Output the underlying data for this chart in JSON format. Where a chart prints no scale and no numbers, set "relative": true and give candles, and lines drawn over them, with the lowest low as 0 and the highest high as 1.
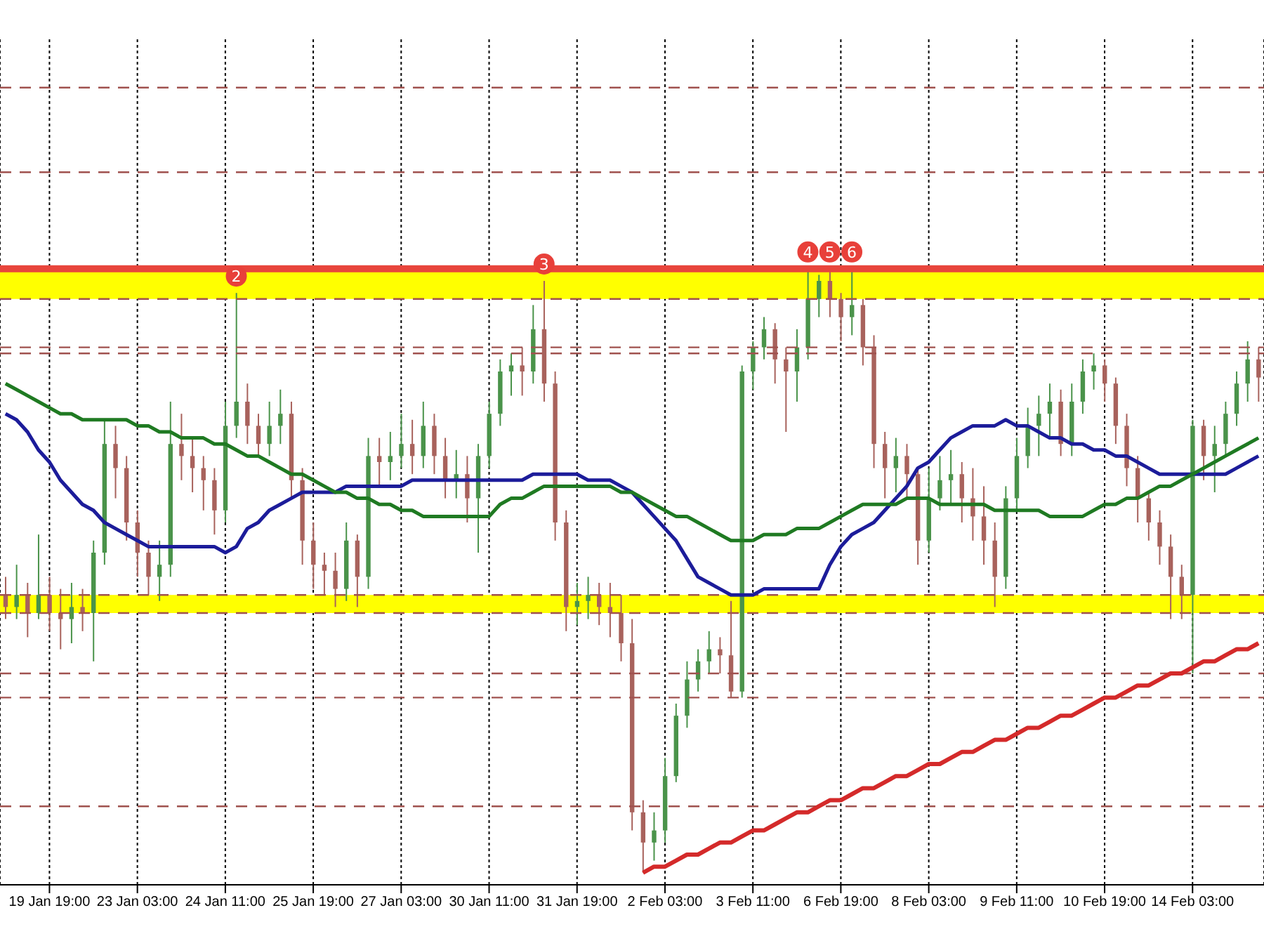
{
  "chart_data": {
    "type": "candlestick",
    "relative": true,
    "legend": false,
    "grid": "x",
    "categories": [
      null,
      null,
      null,
      null,
      "19 Jan 19:00",
      null,
      null,
      null,
      null,
      null,
      null,
      null,
      "23 Jan 03:00",
      null,
      null,
      null,
      null,
      null,
      null,
      null,
      "24 Jan 11:00",
      null,
      null,
      null,
      null,
      null,
      null,
      null,
      "25 Jan 19:00",
      null,
      null,
      null,
      null,
      null,
      null,
      null,
      "27 Jan 03:00",
      null,
      null,
      null,
      null,
      null,
      null,
      null,
      "30 Jan 11:00",
      null,
      null,
      null,
      null,
      null,
      null,
      null,
      "31 Jan 19:00",
      null,
      null,
      null,
      null,
      null,
      null,
      null,
      "2 Feb 03:00",
      null,
      null,
      null,
      null,
      null,
      null,
      null,
      "3 Feb 11:00",
      null,
      null,
      null,
      null,
      null,
      null,
      null,
      "6 Feb 19:00",
      null,
      null,
      null,
      null,
      null,
      null,
      null,
      "8 Feb 03:00",
      null,
      null,
      null,
      null,
      null,
      null,
      null,
      "9 Feb 11:00",
      null,
      null,
      null,
      null,
      null,
      null,
      null,
      "10 Feb 19:00",
      null,
      null,
      null,
      null,
      null,
      null,
      null,
      "14 Feb 03:00",
      null,
      null,
      null,
      null,
      null,
      null
    ],
    "ohlc": [
      [
        0.46,
        0.49,
        0.42,
        0.44
      ],
      [
        0.44,
        0.51,
        0.42,
        0.46
      ],
      [
        0.46,
        0.48,
        0.39,
        0.43
      ],
      [
        0.43,
        0.56,
        0.42,
        0.46
      ],
      [
        0.46,
        0.49,
        0.4,
        0.43
      ],
      [
        0.43,
        0.47,
        0.37,
        0.42
      ],
      [
        0.42,
        0.48,
        0.38,
        0.44
      ],
      [
        0.44,
        0.47,
        0.4,
        0.43
      ],
      [
        0.43,
        0.55,
        0.35,
        0.53
      ],
      [
        0.53,
        0.75,
        0.51,
        0.71
      ],
      [
        0.71,
        0.74,
        0.62,
        0.67
      ],
      [
        0.67,
        0.69,
        0.55,
        0.58
      ],
      [
        0.58,
        0.6,
        0.49,
        0.53
      ],
      [
        0.53,
        0.55,
        0.46,
        0.49
      ],
      [
        0.49,
        0.55,
        0.45,
        0.51
      ],
      [
        0.51,
        0.78,
        0.49,
        0.71
      ],
      [
        0.71,
        0.76,
        0.65,
        0.69
      ],
      [
        0.69,
        0.72,
        0.63,
        0.67
      ],
      [
        0.67,
        0.69,
        0.6,
        0.65
      ],
      [
        0.65,
        0.67,
        0.56,
        0.6
      ],
      [
        0.6,
        0.78,
        0.58,
        0.74
      ],
      [
        0.74,
        0.96,
        0.72,
        0.78
      ],
      [
        0.78,
        0.81,
        0.71,
        0.74
      ],
      [
        0.74,
        0.76,
        0.69,
        0.71
      ],
      [
        0.71,
        0.78,
        0.69,
        0.74
      ],
      [
        0.74,
        0.8,
        0.71,
        0.76
      ],
      [
        0.76,
        0.78,
        0.62,
        0.65
      ],
      [
        0.65,
        0.67,
        0.51,
        0.55
      ],
      [
        0.55,
        0.58,
        0.47,
        0.51
      ],
      [
        0.51,
        0.53,
        0.46,
        0.5
      ],
      [
        0.5,
        0.53,
        0.44,
        0.47
      ],
      [
        0.47,
        0.58,
        0.45,
        0.55
      ],
      [
        0.55,
        0.56,
        0.44,
        0.49
      ],
      [
        0.49,
        0.72,
        0.47,
        0.69
      ],
      [
        0.69,
        0.72,
        0.64,
        0.68
      ],
      [
        0.68,
        0.73,
        0.65,
        0.69
      ],
      [
        0.69,
        0.76,
        0.67,
        0.71
      ],
      [
        0.71,
        0.75,
        0.66,
        0.69
      ],
      [
        0.69,
        0.78,
        0.67,
        0.74
      ],
      [
        0.74,
        0.76,
        0.66,
        0.69
      ],
      [
        0.69,
        0.72,
        0.62,
        0.65
      ],
      [
        0.65,
        0.7,
        0.62,
        0.66
      ],
      [
        0.66,
        0.69,
        0.58,
        0.62
      ],
      [
        0.62,
        0.71,
        0.53,
        0.69
      ],
      [
        0.69,
        0.78,
        0.67,
        0.76
      ],
      [
        0.76,
        0.85,
        0.74,
        0.83
      ],
      [
        0.83,
        0.86,
        0.79,
        0.84
      ],
      [
        0.84,
        0.87,
        0.79,
        0.83
      ],
      [
        0.83,
        0.94,
        0.81,
        0.9
      ],
      [
        0.9,
        0.98,
        0.78,
        0.81
      ],
      [
        0.81,
        0.83,
        0.55,
        0.58
      ],
      [
        0.58,
        0.6,
        0.4,
        0.44
      ],
      [
        0.44,
        0.48,
        0.41,
        0.45
      ],
      [
        0.45,
        0.49,
        0.42,
        0.46
      ],
      [
        0.46,
        0.48,
        0.41,
        0.44
      ],
      [
        0.44,
        0.48,
        0.39,
        0.43
      ],
      [
        0.43,
        0.46,
        0.35,
        0.38
      ],
      [
        0.38,
        0.42,
        0.07,
        0.1
      ],
      [
        0.1,
        0.12,
        0,
        0.05
      ],
      [
        0.05,
        0.1,
        0.02,
        0.07
      ],
      [
        0.07,
        0.19,
        0.05,
        0.16
      ],
      [
        0.16,
        0.28,
        0.15,
        0.26
      ],
      [
        0.26,
        0.35,
        0.24,
        0.32
      ],
      [
        0.32,
        0.37,
        0.3,
        0.35
      ],
      [
        0.35,
        0.4,
        0.33,
        0.37
      ],
      [
        0.37,
        0.39,
        0.33,
        0.36
      ],
      [
        0.36,
        0.45,
        0.29,
        0.3
      ],
      [
        0.3,
        0.84,
        0.29,
        0.83
      ],
      [
        0.83,
        0.88,
        0.8,
        0.87
      ],
      [
        0.87,
        0.92,
        0.85,
        0.9
      ],
      [
        0.9,
        0.91,
        0.81,
        0.85
      ],
      [
        0.85,
        0.87,
        0.73,
        0.83
      ],
      [
        0.83,
        0.9,
        0.78,
        0.87
      ],
      [
        0.87,
        1,
        0.85,
        0.95
      ],
      [
        0.95,
        0.99,
        0.92,
        0.98
      ],
      [
        0.98,
        1,
        0.92,
        0.95
      ],
      [
        0.95,
        0.96,
        0.88,
        0.92
      ],
      [
        0.92,
        1,
        0.89,
        0.94
      ],
      [
        0.94,
        0.95,
        0.84,
        0.87
      ],
      [
        0.87,
        0.89,
        0.67,
        0.71
      ],
      [
        0.71,
        0.73,
        0.62,
        0.67
      ],
      [
        0.67,
        0.72,
        0.63,
        0.69
      ],
      [
        0.69,
        0.71,
        0.62,
        0.66
      ],
      [
        0.66,
        0.67,
        0.51,
        0.55
      ],
      [
        0.55,
        0.67,
        0.53,
        0.62
      ],
      [
        0.62,
        0.69,
        0.6,
        0.65
      ],
      [
        0.65,
        0.7,
        0.61,
        0.66
      ],
      [
        0.66,
        0.68,
        0.58,
        0.62
      ],
      [
        0.62,
        0.67,
        0.55,
        0.59
      ],
      [
        0.59,
        0.64,
        0.51,
        0.55
      ],
      [
        0.55,
        0.58,
        0.44,
        0.49
      ],
      [
        0.49,
        0.64,
        0.47,
        0.62
      ],
      [
        0.62,
        0.72,
        0.6,
        0.69
      ],
      [
        0.69,
        0.77,
        0.67,
        0.74
      ],
      [
        0.74,
        0.79,
        0.69,
        0.76
      ],
      [
        0.76,
        0.81,
        0.72,
        0.78
      ],
      [
        0.78,
        0.8,
        0.69,
        0.71
      ],
      [
        0.71,
        0.81,
        0.69,
        0.78
      ],
      [
        0.78,
        0.85,
        0.76,
        0.83
      ],
      [
        0.83,
        0.86,
        0.8,
        0.84
      ],
      [
        0.84,
        0.85,
        0.78,
        0.81
      ],
      [
        0.81,
        0.82,
        0.71,
        0.74
      ],
      [
        0.74,
        0.76,
        0.64,
        0.67
      ],
      [
        0.67,
        0.69,
        0.58,
        0.62
      ],
      [
        0.62,
        0.63,
        0.55,
        0.58
      ],
      [
        0.58,
        0.6,
        0.51,
        0.54
      ],
      [
        0.54,
        0.56,
        0.42,
        0.49
      ],
      [
        0.49,
        0.51,
        0.42,
        0.46
      ],
      [
        0.46,
        0.75,
        0.33,
        0.74
      ],
      [
        0.74,
        0.75,
        0.65,
        0.69
      ],
      [
        0.69,
        0.74,
        0.63,
        0.71
      ],
      [
        0.71,
        0.78,
        0.69,
        0.76
      ],
      [
        0.76,
        0.83,
        0.74,
        0.81
      ],
      [
        0.81,
        0.88,
        0.78,
        0.85
      ],
      [
        0.85,
        0.87,
        0.78,
        0.82
      ]
    ],
    "colors": [
      "#a8625c",
      "#4a934a",
      "#a8625c",
      "#4a934a",
      "#a8625c",
      "#a8625c",
      "#4a934a",
      "#a8625c",
      "#4a934a",
      "#4a934a",
      "#a8625c",
      "#a8625c",
      "#a8625c",
      "#a8625c",
      "#4a934a",
      "#4a934a",
      "#a8625c",
      "#a8625c",
      "#a8625c",
      "#a8625c",
      "#4a934a",
      "#4a934a",
      "#a8625c",
      "#a8625c",
      "#4a934a",
      "#4a934a",
      "#a8625c",
      "#a8625c",
      "#a8625c",
      "#a8625c",
      "#a8625c",
      "#4a934a",
      "#a8625c",
      "#4a934a",
      "#a8625c",
      "#4a934a",
      "#4a934a",
      "#a8625c",
      "#4a934a",
      "#a8625c",
      "#a8625c",
      "#4a934a",
      "#a8625c",
      "#4a934a",
      "#4a934a",
      "#4a934a",
      "#4a934a",
      "#a8625c",
      "#4a934a",
      "#a8625c",
      "#a8625c",
      "#a8625c",
      "#4a934a",
      "#4a934a",
      "#a8625c",
      "#a8625c",
      "#a8625c",
      "#a8625c",
      "#a8625c",
      "#4a934a",
      "#4a934a",
      "#4a934a",
      "#4a934a",
      "#4a934a",
      "#4a934a",
      "#a8625c",
      "#a8625c",
      "#4a934a",
      "#4a934a",
      "#4a934a",
      "#a8625c",
      "#a8625c",
      "#4a934a",
      "#4a934a",
      "#4a934a",
      "#a8625c",
      "#a8625c",
      "#4a934a",
      "#a8625c",
      "#a8625c",
      "#a8625c",
      "#4a934a",
      "#a8625c",
      "#a8625c",
      "#4a934a",
      "#4a934a",
      "#4a934a",
      "#a8625c",
      "#a8625c",
      "#a8625c",
      "#a8625c",
      "#4a934a",
      "#4a934a",
      "#4a934a",
      "#4a934a",
      "#4a934a",
      "#a8625c",
      "#4a934a",
      "#4a934a",
      "#4a934a",
      "#a8625c",
      "#a8625c",
      "#a8625c",
      "#a8625c",
      "#a8625c",
      "#a8625c",
      "#a8625c",
      "#a8625c",
      "#4a934a",
      "#a8625c",
      "#4a934a",
      "#4a934a",
      "#4a934a",
      "#4a934a",
      "#a8625c"
    ],
    "series": [
      {
        "type": "line",
        "color": "#1c1c9a",
        "values": [
          0.76,
          0.75,
          0.73,
          0.7,
          0.68,
          0.65,
          0.63,
          0.61,
          0.6,
          0.58,
          0.57,
          0.56,
          0.55,
          0.54,
          0.54,
          0.54,
          0.54,
          0.54,
          0.54,
          0.54,
          0.53,
          0.54,
          0.57,
          0.58,
          0.6,
          0.61,
          0.62,
          0.63,
          0.63,
          0.63,
          0.63,
          0.64,
          0.64,
          0.64,
          0.64,
          0.64,
          0.64,
          0.65,
          0.65,
          0.65,
          0.65,
          0.65,
          0.65,
          0.65,
          0.65,
          0.65,
          0.65,
          0.65,
          0.66,
          0.66,
          0.66,
          0.66,
          0.66,
          0.65,
          0.65,
          0.65,
          0.64,
          0.63,
          0.61,
          0.59,
          0.57,
          0.55,
          0.52,
          0.49,
          0.48,
          0.47,
          0.46,
          0.46,
          0.46,
          0.47,
          0.47,
          0.47,
          0.47,
          0.47,
          0.47,
          0.51,
          0.54,
          0.56,
          0.57,
          0.58,
          0.6,
          0.62,
          0.64,
          0.67,
          0.68,
          0.7,
          0.72,
          0.73,
          0.74,
          0.74,
          0.74,
          0.75,
          0.74,
          0.74,
          0.73,
          0.72,
          0.72,
          0.71,
          0.71,
          0.7,
          0.7,
          0.69,
          0.69,
          0.68,
          0.67,
          0.66,
          0.66,
          0.66,
          0.66,
          0.66,
          0.66,
          0.66,
          0.67,
          0.68,
          0.69
        ]
      },
      {
        "type": "line",
        "color": "#1f7a22",
        "values": [
          0.81,
          0.8,
          0.79,
          0.78,
          0.77,
          0.76,
          0.76,
          0.75,
          0.75,
          0.75,
          0.75,
          0.75,
          0.74,
          0.74,
          0.73,
          0.73,
          0.72,
          0.72,
          0.72,
          0.71,
          0.71,
          0.7,
          0.69,
          0.69,
          0.68,
          0.67,
          0.66,
          0.66,
          0.65,
          0.64,
          0.63,
          0.63,
          0.62,
          0.62,
          0.61,
          0.61,
          0.6,
          0.6,
          0.59,
          0.59,
          0.59,
          0.59,
          0.59,
          0.59,
          0.59,
          0.61,
          0.62,
          0.62,
          0.63,
          0.64,
          0.64,
          0.64,
          0.64,
          0.64,
          0.64,
          0.64,
          0.63,
          0.63,
          0.62,
          0.61,
          0.6,
          0.59,
          0.59,
          0.58,
          0.57,
          0.56,
          0.55,
          0.55,
          0.55,
          0.56,
          0.56,
          0.56,
          0.57,
          0.57,
          0.57,
          0.58,
          0.59,
          0.6,
          0.61,
          0.61,
          0.61,
          0.61,
          0.62,
          0.62,
          0.62,
          0.61,
          0.61,
          0.61,
          0.61,
          0.61,
          0.6,
          0.6,
          0.6,
          0.6,
          0.6,
          0.59,
          0.59,
          0.59,
          0.59,
          0.6,
          0.61,
          0.61,
          0.62,
          0.62,
          0.63,
          0.64,
          0.64,
          0.65,
          0.66,
          0.67,
          0.68,
          0.69,
          0.7,
          0.71,
          0.72
        ]
      },
      {
        "type": "line",
        "color": "#d42a2a",
        "values": [
          null,
          null,
          null,
          null,
          null,
          null,
          null,
          null,
          null,
          null,
          null,
          null,
          null,
          null,
          null,
          null,
          null,
          null,
          null,
          null,
          null,
          null,
          null,
          null,
          null,
          null,
          null,
          null,
          null,
          null,
          null,
          null,
          null,
          null,
          null,
          null,
          null,
          null,
          null,
          null,
          null,
          null,
          null,
          null,
          null,
          null,
          null,
          null,
          null,
          null,
          null,
          null,
          null,
          null,
          null,
          null,
          null,
          null,
          0,
          0.01,
          0.01,
          0.02,
          0.03,
          0.03,
          0.04,
          0.05,
          0.05,
          0.06,
          0.07,
          0.07,
          0.08,
          0.09,
          0.1,
          0.1,
          0.11,
          0.12,
          0.12,
          0.13,
          0.14,
          0.14,
          0.15,
          0.16,
          0.16,
          0.17,
          0.18,
          0.18,
          0.19,
          0.2,
          0.2,
          0.21,
          0.22,
          0.22,
          0.23,
          0.24,
          0.24,
          0.25,
          0.26,
          0.26,
          0.27,
          0.28,
          0.29,
          0.29,
          0.3,
          0.31,
          0.31,
          0.32,
          0.33,
          0.33,
          0.34,
          0.35,
          0.35,
          0.36,
          0.37,
          0.37,
          0.38
        ]
      }
    ],
    "bands": [
      {
        "axis": "y",
        "from": 0.95,
        "to": 1,
        "color": "#ffff00"
      },
      {
        "axis": "y",
        "from": 0.43,
        "to": 0.46,
        "color": "#ffff00"
      }
    ],
    "ref_lines": [
      {
        "axis": "y",
        "value": 1.3,
        "color": "#a0524f",
        "line_style": "dashed"
      },
      {
        "axis": "y",
        "value": 1.16,
        "color": "#a0524f",
        "line_style": "dashed"
      },
      {
        "axis": "y",
        "value": 0.95,
        "color": "#a0524f",
        "line_style": "dashed"
      },
      {
        "axis": "y",
        "value": 0.87,
        "color": "#a0524f",
        "line_style": "dashed"
      },
      {
        "axis": "y",
        "value": 0.86,
        "color": "#a0524f",
        "line_style": "dashed"
      },
      {
        "axis": "y",
        "value": 0.46,
        "color": "#a0524f",
        "line_style": "dashed"
      },
      {
        "axis": "y",
        "value": 0.43,
        "color": "#a0524f",
        "line_style": "dashed"
      },
      {
        "axis": "y",
        "value": 0.33,
        "color": "#a0524f",
        "line_style": "dashed"
      },
      {
        "axis": "y",
        "value": 0.29,
        "color": "#a0524f",
        "line_style": "dashed"
      },
      {
        "axis": "y",
        "value": 0.11,
        "color": "#a0524f",
        "line_style": "dashed"
      },
      {
        "axis": "y",
        "value": 1,
        "color": "#e8453c",
        "line_style": "solid"
      }
    ],
    "annotations": [
      {
        "text": "2",
        "y": 0.96
      },
      {
        "text": "3",
        "y": 0.98
      },
      {
        "text": "4",
        "y": 1
      },
      {
        "text": "5",
        "y": 1
      },
      {
        "text": "6",
        "y": 1
      }
    ]
  }
}
